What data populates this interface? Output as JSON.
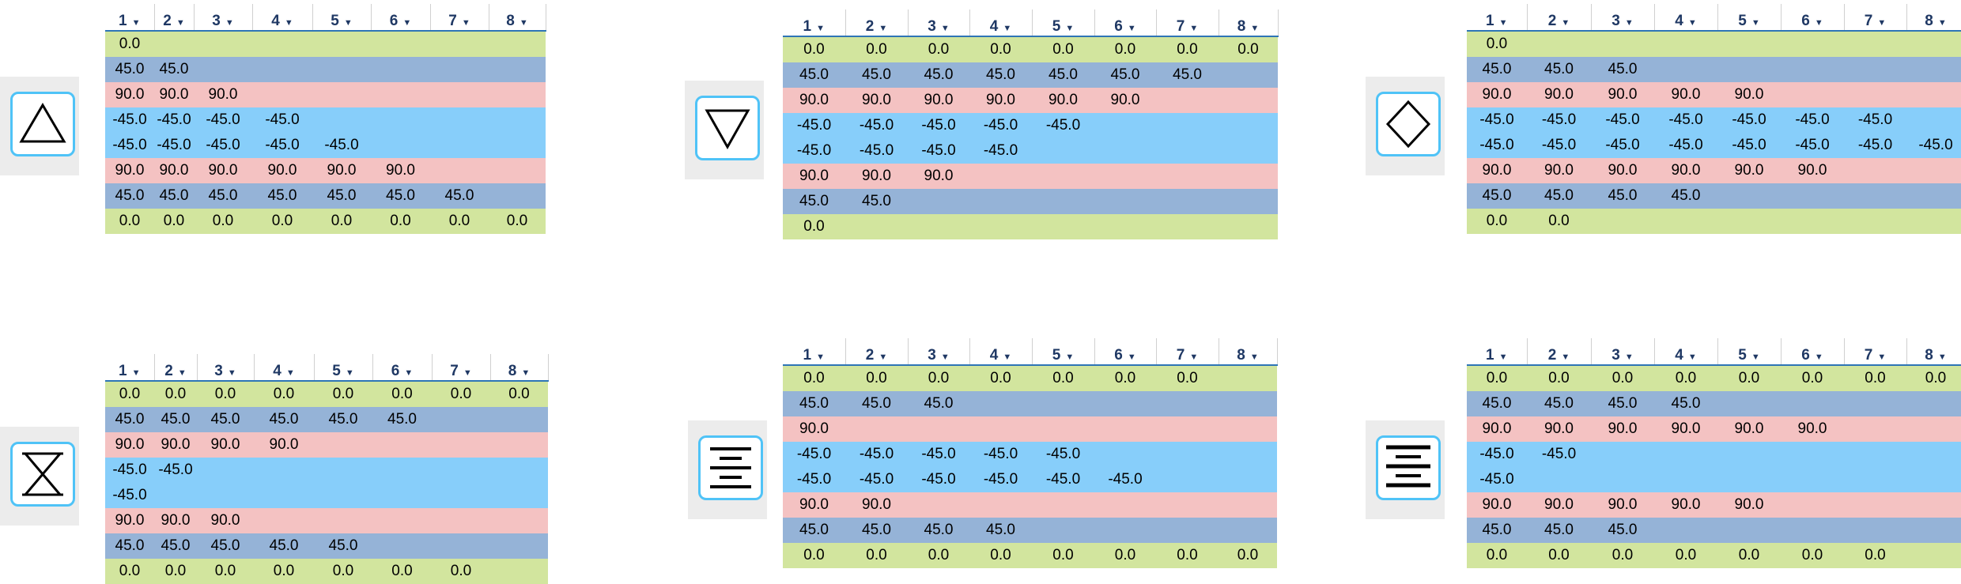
{
  "header_caret": "▼",
  "panels": [
    {
      "id": "triangle-up",
      "icon": "triangle-up-icon",
      "headers": [
        "1",
        "2",
        "3",
        "4",
        "5",
        "6",
        "7",
        "8"
      ],
      "rows": [
        {
          "color": "green",
          "cells": [
            "0.0",
            "",
            "",
            "",
            "",
            "",
            "",
            ""
          ]
        },
        {
          "color": "steel",
          "cells": [
            "45.0",
            "45.0",
            "",
            "",
            "",
            "",
            "",
            ""
          ]
        },
        {
          "color": "pink",
          "cells": [
            "90.0",
            "90.0",
            "90.0",
            "",
            "",
            "",
            "",
            ""
          ]
        },
        {
          "color": "sky",
          "cells": [
            "-45.0",
            "-45.0",
            "-45.0",
            "-45.0",
            "",
            "",
            "",
            ""
          ]
        },
        {
          "color": "sky",
          "cells": [
            "-45.0",
            "-45.0",
            "-45.0",
            "-45.0",
            "-45.0",
            "",
            "",
            ""
          ]
        },
        {
          "color": "pink",
          "cells": [
            "90.0",
            "90.0",
            "90.0",
            "90.0",
            "90.0",
            "90.0",
            "",
            ""
          ]
        },
        {
          "color": "steel",
          "cells": [
            "45.0",
            "45.0",
            "45.0",
            "45.0",
            "45.0",
            "45.0",
            "45.0",
            ""
          ]
        },
        {
          "color": "green",
          "cells": [
            "0.0",
            "0.0",
            "0.0",
            "0.0",
            "0.0",
            "0.0",
            "0.0",
            "0.0"
          ]
        }
      ]
    },
    {
      "id": "triangle-down",
      "icon": "triangle-down-icon",
      "headers": [
        "1",
        "2",
        "3",
        "4",
        "5",
        "6",
        "7",
        "8"
      ],
      "rows": [
        {
          "color": "green",
          "cells": [
            "0.0",
            "0.0",
            "0.0",
            "0.0",
            "0.0",
            "0.0",
            "0.0",
            "0.0"
          ]
        },
        {
          "color": "steel",
          "cells": [
            "45.0",
            "45.0",
            "45.0",
            "45.0",
            "45.0",
            "45.0",
            "45.0",
            ""
          ]
        },
        {
          "color": "pink",
          "cells": [
            "90.0",
            "90.0",
            "90.0",
            "90.0",
            "90.0",
            "90.0",
            "",
            ""
          ]
        },
        {
          "color": "sky",
          "cells": [
            "-45.0",
            "-45.0",
            "-45.0",
            "-45.0",
            "-45.0",
            "",
            "",
            ""
          ]
        },
        {
          "color": "sky",
          "cells": [
            "-45.0",
            "-45.0",
            "-45.0",
            "-45.0",
            "",
            "",
            "",
            ""
          ]
        },
        {
          "color": "pink",
          "cells": [
            "90.0",
            "90.0",
            "90.0",
            "",
            "",
            "",
            "",
            ""
          ]
        },
        {
          "color": "steel",
          "cells": [
            "45.0",
            "45.0",
            "",
            "",
            "",
            "",
            "",
            ""
          ]
        },
        {
          "color": "green",
          "cells": [
            "0.0",
            "",
            "",
            "",
            "",
            "",
            "",
            ""
          ]
        }
      ]
    },
    {
      "id": "diamond",
      "icon": "diamond-icon",
      "headers": [
        "1",
        "2",
        "3",
        "4",
        "5",
        "6",
        "7",
        "8"
      ],
      "rows": [
        {
          "color": "green",
          "cells": [
            "0.0",
            "",
            "",
            "",
            "",
            "",
            "",
            ""
          ]
        },
        {
          "color": "steel",
          "cells": [
            "45.0",
            "45.0",
            "45.0",
            "",
            "",
            "",
            "",
            ""
          ]
        },
        {
          "color": "pink",
          "cells": [
            "90.0",
            "90.0",
            "90.0",
            "90.0",
            "90.0",
            "",
            "",
            ""
          ]
        },
        {
          "color": "sky",
          "cells": [
            "-45.0",
            "-45.0",
            "-45.0",
            "-45.0",
            "-45.0",
            "-45.0",
            "-45.0",
            ""
          ]
        },
        {
          "color": "sky",
          "cells": [
            "-45.0",
            "-45.0",
            "-45.0",
            "-45.0",
            "-45.0",
            "-45.0",
            "-45.0",
            "-45.0"
          ]
        },
        {
          "color": "pink",
          "cells": [
            "90.0",
            "90.0",
            "90.0",
            "90.0",
            "90.0",
            "90.0",
            "",
            ""
          ]
        },
        {
          "color": "steel",
          "cells": [
            "45.0",
            "45.0",
            "45.0",
            "45.0",
            "",
            "",
            "",
            ""
          ]
        },
        {
          "color": "green",
          "cells": [
            "0.0",
            "0.0",
            "",
            "",
            "",
            "",
            "",
            ""
          ]
        }
      ]
    },
    {
      "id": "hourglass",
      "icon": "hourglass-icon",
      "headers": [
        "1",
        "2",
        "3",
        "4",
        "5",
        "6",
        "7",
        "8"
      ],
      "rows": [
        {
          "color": "green",
          "cells": [
            "0.0",
            "0.0",
            "0.0",
            "0.0",
            "0.0",
            "0.0",
            "0.0",
            "0.0"
          ]
        },
        {
          "color": "steel",
          "cells": [
            "45.0",
            "45.0",
            "45.0",
            "45.0",
            "45.0",
            "45.0",
            "",
            ""
          ]
        },
        {
          "color": "pink",
          "cells": [
            "90.0",
            "90.0",
            "90.0",
            "90.0",
            "",
            "",
            "",
            ""
          ]
        },
        {
          "color": "sky",
          "cells": [
            "-45.0",
            "-45.0",
            "",
            "",
            "",
            "",
            "",
            ""
          ]
        },
        {
          "color": "sky",
          "cells": [
            "-45.0",
            "",
            "",
            "",
            "",
            "",
            "",
            ""
          ]
        },
        {
          "color": "pink",
          "cells": [
            "90.0",
            "90.0",
            "90.0",
            "",
            "",
            "",
            "",
            ""
          ]
        },
        {
          "color": "steel",
          "cells": [
            "45.0",
            "45.0",
            "45.0",
            "45.0",
            "45.0",
            "",
            "",
            ""
          ]
        },
        {
          "color": "green",
          "cells": [
            "0.0",
            "0.0",
            "0.0",
            "0.0",
            "0.0",
            "0.0",
            "0.0",
            ""
          ]
        }
      ]
    },
    {
      "id": "align-center",
      "icon": "align-center-icon",
      "headers": [
        "1",
        "2",
        "3",
        "4",
        "5",
        "6",
        "7",
        "8"
      ],
      "rows": [
        {
          "color": "green",
          "cells": [
            "0.0",
            "0.0",
            "0.0",
            "0.0",
            "0.0",
            "0.0",
            "0.0",
            ""
          ]
        },
        {
          "color": "steel",
          "cells": [
            "45.0",
            "45.0",
            "45.0",
            "",
            "",
            "",
            "",
            ""
          ]
        },
        {
          "color": "pink",
          "cells": [
            "90.0",
            "",
            "",
            "",
            "",
            "",
            "",
            ""
          ]
        },
        {
          "color": "sky",
          "cells": [
            "-45.0",
            "-45.0",
            "-45.0",
            "-45.0",
            "-45.0",
            "",
            "",
            ""
          ]
        },
        {
          "color": "sky",
          "cells": [
            "-45.0",
            "-45.0",
            "-45.0",
            "-45.0",
            "-45.0",
            "-45.0",
            "",
            ""
          ]
        },
        {
          "color": "pink",
          "cells": [
            "90.0",
            "90.0",
            "",
            "",
            "",
            "",
            "",
            ""
          ]
        },
        {
          "color": "steel",
          "cells": [
            "45.0",
            "45.0",
            "45.0",
            "45.0",
            "",
            "",
            "",
            ""
          ]
        },
        {
          "color": "green",
          "cells": [
            "0.0",
            "0.0",
            "0.0",
            "0.0",
            "0.0",
            "0.0",
            "0.0",
            "0.0"
          ]
        }
      ]
    },
    {
      "id": "align-center-bold",
      "icon": "align-center-bold-icon",
      "headers": [
        "1",
        "2",
        "3",
        "4",
        "5",
        "6",
        "7",
        "8"
      ],
      "rows": [
        {
          "color": "green",
          "cells": [
            "0.0",
            "0.0",
            "0.0",
            "0.0",
            "0.0",
            "0.0",
            "0.0",
            "0.0"
          ]
        },
        {
          "color": "steel",
          "cells": [
            "45.0",
            "45.0",
            "45.0",
            "45.0",
            "",
            "",
            "",
            ""
          ]
        },
        {
          "color": "pink",
          "cells": [
            "90.0",
            "90.0",
            "90.0",
            "90.0",
            "90.0",
            "90.0",
            "",
            ""
          ]
        },
        {
          "color": "sky",
          "cells": [
            "-45.0",
            "-45.0",
            "",
            "",
            "",
            "",
            "",
            ""
          ]
        },
        {
          "color": "sky",
          "cells": [
            "-45.0",
            "",
            "",
            "",
            "",
            "",
            "",
            ""
          ]
        },
        {
          "color": "pink",
          "cells": [
            "90.0",
            "90.0",
            "90.0",
            "90.0",
            "90.0",
            "",
            "",
            ""
          ]
        },
        {
          "color": "steel",
          "cells": [
            "45.0",
            "45.0",
            "45.0",
            "",
            "",
            "",
            "",
            ""
          ]
        },
        {
          "color": "green",
          "cells": [
            "0.0",
            "0.0",
            "0.0",
            "0.0",
            "0.0",
            "0.0",
            "0.0",
            ""
          ]
        }
      ]
    }
  ]
}
